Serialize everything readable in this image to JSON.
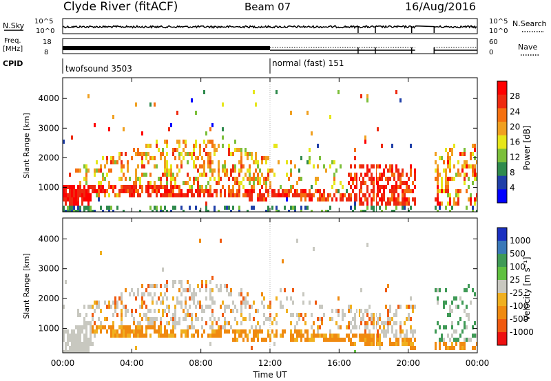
{
  "header": {
    "station": "Clyde River (fitACF)",
    "beam": "Beam 07",
    "date": "16/Aug/2016"
  },
  "status_panel": {
    "nsky_label": "N.Sky",
    "nsky_ticks": [
      "10^5",
      "10^0"
    ],
    "nsky_right_ticks": [
      "10^5",
      "10^0"
    ],
    "nsearch_label": "N.Search",
    "freq_label": "Freq.",
    "freq_unit": "[MHz]",
    "freq_ticks": [
      "18",
      "8"
    ],
    "nave_ticks": [
      "60",
      "0"
    ],
    "nave_label": "Nave",
    "cpid_label": "CPID",
    "cpid_segments": [
      {
        "label": "twofsound 3503",
        "start_hour": 0,
        "end_hour": 12
      },
      {
        "label": "normal (fast) 151",
        "start_hour": 12,
        "end_hour": 24
      }
    ]
  },
  "x_axis": {
    "title": "Time UT",
    "tick_labels": [
      "00:00",
      "04:00",
      "08:00",
      "12:00",
      "16:00",
      "20:00",
      "00:00"
    ],
    "tick_hours": [
      0,
      4,
      8,
      12,
      16,
      20,
      24
    ]
  },
  "chart_data": [
    {
      "type": "heatmap",
      "name": "power",
      "ylabel": "Slant Range [km]",
      "ylim": [
        180,
        4700
      ],
      "y_ticks": [
        1000,
        2000,
        3000,
        4000
      ],
      "xlim_hours": [
        0,
        24
      ],
      "colorbar": {
        "label": "Power [dB]",
        "tick_labels": [
          "4",
          "8",
          "12",
          "16",
          "20",
          "24",
          "28"
        ],
        "colors": [
          "#0000ff",
          "#1f3fa8",
          "#2f8a4d",
          "#7cbf3a",
          "#e6e61a",
          "#f0a020",
          "#f57010",
          "#ee2a10",
          "#ff0000"
        ]
      },
      "data_gaps_hours": [
        [
          20.5,
          21.5
        ]
      ],
      "features": [
        {
          "desc": "near-range band",
          "hours": [
            0,
            1.5
          ],
          "range_km": [
            200,
            1000
          ],
          "level_db": 28
        },
        {
          "desc": "broad echo region",
          "hours": [
            1,
            12
          ],
          "range_km": [
            600,
            2900
          ],
          "level_db": 16
        },
        {
          "desc": "descending band",
          "hours": [
            12,
            20.3
          ],
          "range_km": [
            500,
            900
          ],
          "level_db": 26
        }
      ]
    },
    {
      "type": "heatmap",
      "name": "velocity",
      "ylabel": "Slant Range [km]",
      "ylim": [
        180,
        4700
      ],
      "y_ticks": [
        1000,
        2000,
        3000,
        4000
      ],
      "xlim_hours": [
        0,
        24
      ],
      "colorbar": {
        "label": "Velocity [m s⁻¹]",
        "tick_labels": [
          "1000",
          "500",
          "100",
          "25",
          "-25",
          "-100",
          "-500",
          "-1000"
        ],
        "colors": [
          "#1a30c0",
          "#3a78b8",
          "#3f9a56",
          "#60c040",
          "#c8c8c0",
          "#f0b020",
          "#f08a10",
          "#f05a10",
          "#ee1010"
        ]
      },
      "data_gaps_hours": [
        [
          20.5,
          21.5
        ]
      ],
      "features": [
        {
          "desc": "ground scatter",
          "hours": [
            0,
            1.5
          ],
          "range_km": [
            200,
            2500
          ],
          "level_ms": 0
        },
        {
          "desc": "negative velocity band",
          "hours": [
            3,
            12
          ],
          "range_km": [
            800,
            1600
          ],
          "level_ms": -300
        },
        {
          "desc": "descending band",
          "hours": [
            12,
            20.3
          ],
          "range_km": [
            500,
            900
          ],
          "level_ms": -300
        }
      ]
    }
  ]
}
